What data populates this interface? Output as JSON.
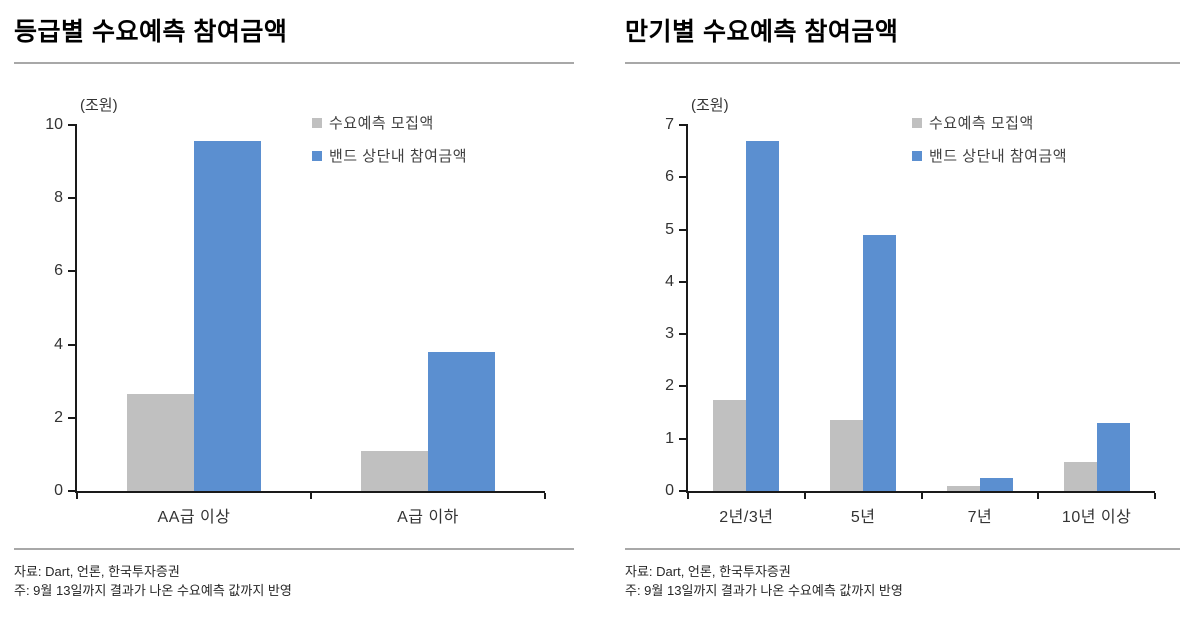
{
  "chart_data": [
    {
      "type": "bar",
      "title": "등급별 수요예측 참여금액",
      "unit": "(조원)",
      "categories": [
        "AA급 이상",
        "A급 이하"
      ],
      "series": [
        {
          "name": "수요예측 모집액",
          "color": "#c0c0c0",
          "values": [
            2.65,
            1.1
          ]
        },
        {
          "name": "밴드 상단내 참여금액",
          "color": "#5b8fd0",
          "values": [
            9.55,
            3.8
          ]
        }
      ],
      "ylim": [
        0,
        10
      ],
      "ytick_step": 2,
      "grid": false,
      "legend_position": "top-right",
      "source": "자료: Dart, 언론, 한국투자증권",
      "note": "주: 9월 13일까지 결과가 나온 수요예측 값까지 반영"
    },
    {
      "type": "bar",
      "title": "만기별 수요예측 참여금액",
      "unit": "(조원)",
      "categories": [
        "2년/3년",
        "5년",
        "7년",
        "10년 이상"
      ],
      "series": [
        {
          "name": "수요예측 모집액",
          "color": "#c0c0c0",
          "values": [
            1.75,
            1.35,
            0.1,
            0.55
          ]
        },
        {
          "name": "밴드 상단내 참여금액",
          "color": "#5b8fd0",
          "values": [
            6.7,
            4.9,
            0.25,
            1.3
          ]
        }
      ],
      "ylim": [
        0,
        7
      ],
      "ytick_step": 1,
      "grid": false,
      "legend_position": "top-right",
      "source": "자료: Dart, 언론, 한국투자증권",
      "note": "주: 9월 13일까지 결과가 나온 수요예측 값까지 반영"
    }
  ]
}
